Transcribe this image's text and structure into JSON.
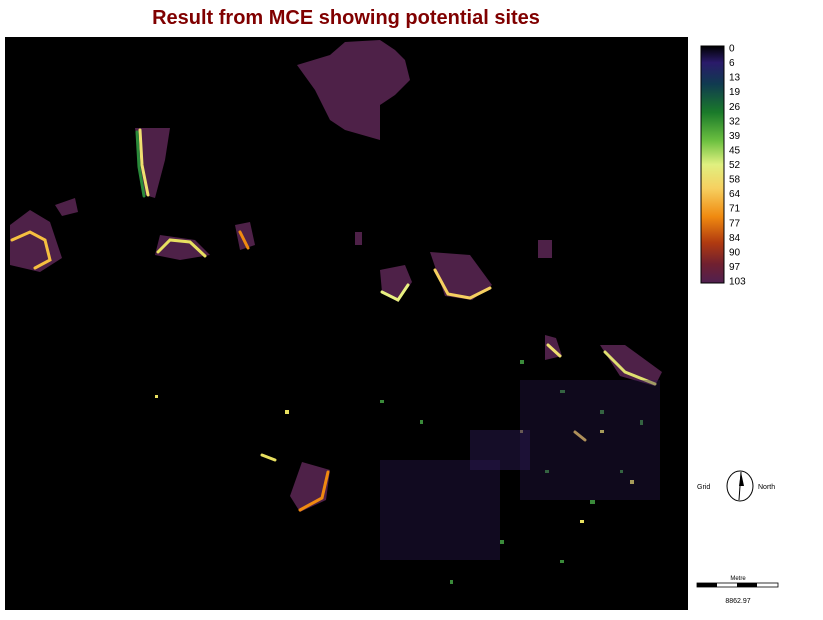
{
  "title": "Result from MCE showing potential sites",
  "legend": {
    "labels": [
      0,
      6,
      13,
      19,
      26,
      32,
      39,
      45,
      52,
      58,
      64,
      71,
      77,
      84,
      90,
      97,
      103
    ]
  },
  "north_arrow": {
    "left": "Grid",
    "right": "North"
  },
  "scale_bar": {
    "unit": "Metre",
    "distance": "8862.97"
  }
}
